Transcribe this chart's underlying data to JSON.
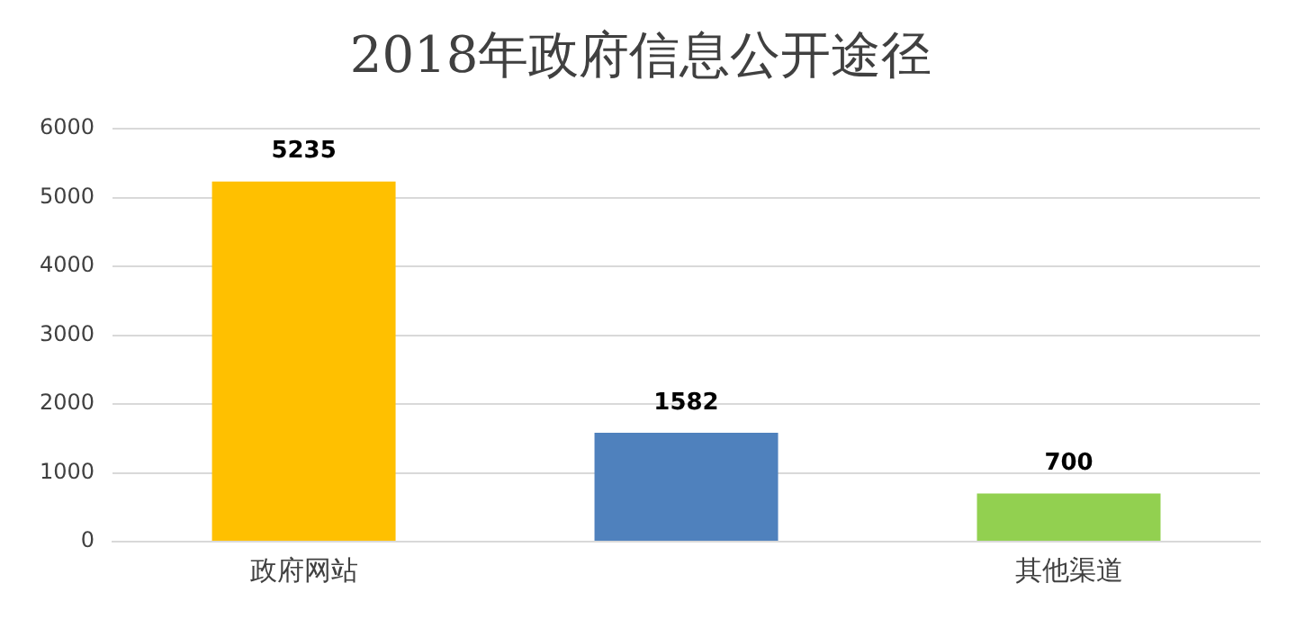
{
  "chart_data": {
    "type": "bar",
    "title": "2018年政府信息公开途径",
    "categories": [
      "政府网站",
      null,
      "其他渠道"
    ],
    "values": [
      5235,
      1582,
      700
    ],
    "colors": [
      "#ffc000",
      "#4f81bd",
      "#92d050"
    ],
    "ylim": [
      0,
      6000
    ],
    "yticks": [
      0,
      1000,
      2000,
      3000,
      4000,
      5000,
      6000
    ],
    "grid": "y",
    "data_labels": true
  }
}
